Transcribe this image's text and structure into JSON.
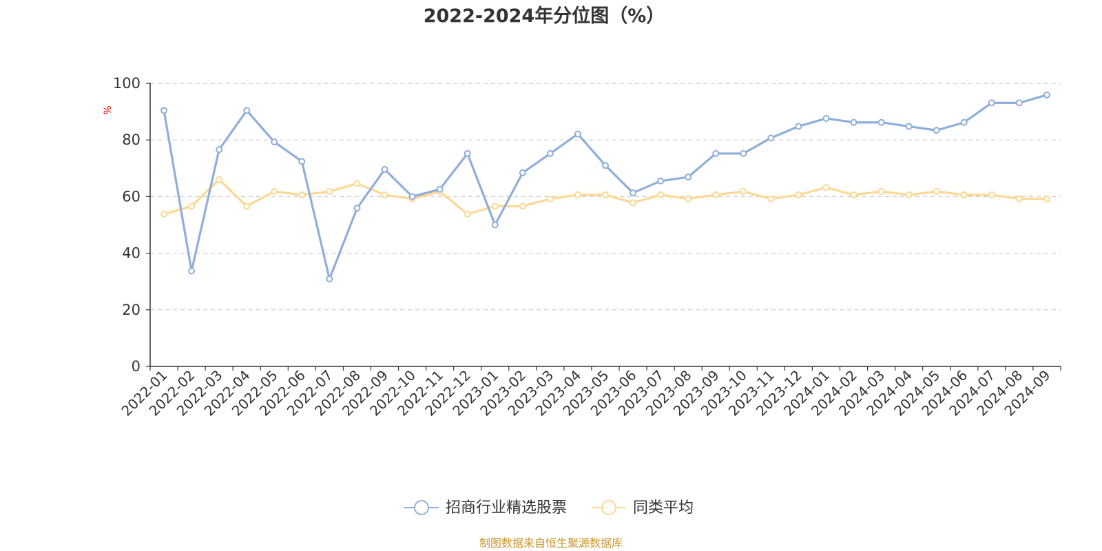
{
  "colors": {
    "series1": "#8eaedb",
    "series2": "#fcd893",
    "ylabel": "#ee0000",
    "source": "#c8962e",
    "grid": "#cccccc",
    "axis": "#333333"
  },
  "source_note": "制图数据来自恒生聚源数据库",
  "chart_data": {
    "type": "line",
    "title": "2022-2024年分位图（%）",
    "xlabel": "",
    "ylabel": "%",
    "ylim": [
      0,
      100
    ],
    "yticks": [
      "0",
      "20",
      "40",
      "60",
      "80",
      "100"
    ],
    "grid": "horizontal-dashed",
    "legend_position": "bottom-center",
    "categories": [
      "2022-01",
      "2022-02",
      "2022-03",
      "2022-04",
      "2022-05",
      "2022-06",
      "2022-07",
      "2022-08",
      "2022-09",
      "2022-10",
      "2022-11",
      "2022-12",
      "2023-01",
      "2023-02",
      "2023-03",
      "2023-04",
      "2023-05",
      "2023-06",
      "2023-07",
      "2023-08",
      "2023-09",
      "2023-10",
      "2023-11",
      "2023-12",
      "2024-01",
      "2024-02",
      "2024-03",
      "2024-04",
      "2024-05",
      "2024-06",
      "2024-07",
      "2024-08",
      "2024-09"
    ],
    "series": [
      {
        "name": "招商行业精选股票",
        "values": [
          90.4,
          33.7,
          76.6,
          90.4,
          79.3,
          72.4,
          30.9,
          55.9,
          69.6,
          60.0,
          62.6,
          75.2,
          50.0,
          68.4,
          75.2,
          82.1,
          71.0,
          61.3,
          65.5,
          66.9,
          75.2,
          75.2,
          80.7,
          84.8,
          87.6,
          86.2,
          86.2,
          84.8,
          83.4,
          86.2,
          93.1,
          93.1,
          95.9
        ]
      },
      {
        "name": "同类平均",
        "values": [
          53.8,
          56.6,
          66.0,
          56.6,
          61.8,
          60.6,
          61.8,
          64.6,
          60.6,
          59.2,
          61.8,
          53.8,
          56.6,
          56.6,
          59.2,
          60.6,
          60.6,
          57.8,
          60.6,
          59.2,
          60.6,
          61.8,
          59.2,
          60.6,
          63.2,
          60.6,
          61.8,
          60.6,
          61.8,
          60.6,
          60.6,
          59.2,
          59.2
        ]
      }
    ]
  }
}
